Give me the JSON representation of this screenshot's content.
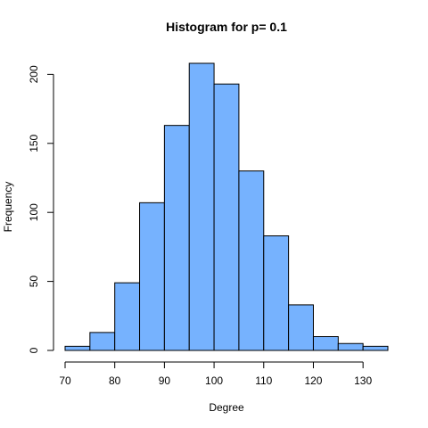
{
  "chart_data": {
    "type": "bar",
    "title": "Histogram for p= 0.1",
    "xlabel": "Degree",
    "ylabel": "Frequency",
    "bins": [
      {
        "x0": 70,
        "x1": 75,
        "count": 3
      },
      {
        "x0": 75,
        "x1": 80,
        "count": 13
      },
      {
        "x0": 80,
        "x1": 85,
        "count": 49
      },
      {
        "x0": 85,
        "x1": 90,
        "count": 107
      },
      {
        "x0": 90,
        "x1": 95,
        "count": 163
      },
      {
        "x0": 95,
        "x1": 100,
        "count": 208
      },
      {
        "x0": 100,
        "x1": 105,
        "count": 193
      },
      {
        "x0": 105,
        "x1": 110,
        "count": 130
      },
      {
        "x0": 110,
        "x1": 115,
        "count": 83
      },
      {
        "x0": 115,
        "x1": 120,
        "count": 33
      },
      {
        "x0": 120,
        "x1": 125,
        "count": 10
      },
      {
        "x0": 125,
        "x1": 130,
        "count": 5
      },
      {
        "x0": 130,
        "x1": 135,
        "count": 3
      }
    ],
    "x_ticks": [
      70,
      80,
      90,
      100,
      110,
      120,
      130
    ],
    "y_ticks": [
      0,
      50,
      100,
      150,
      200
    ],
    "xlim": [
      70,
      135
    ],
    "ylim": [
      0,
      208
    ],
    "bar_color": "#76b2fe",
    "bar_edge_color": "#000000",
    "grid": false
  }
}
